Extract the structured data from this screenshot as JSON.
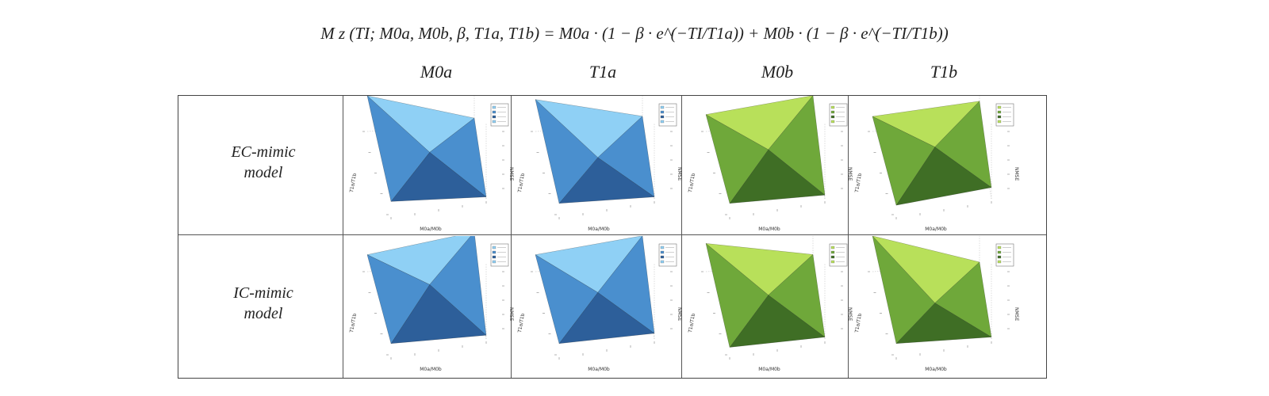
{
  "equation": "M z (TI; M0a, M0b, β, T1a, T1b) = M0a · (1 − β · e^(−TI/T1a)) + M0b · (1 − β · e^(−TI/T1b))",
  "columns": [
    "M0a",
    "T1a",
    "M0b",
    "T1b"
  ],
  "rows": [
    {
      "label_line1": "EC-mimic",
      "label_line2": "model"
    },
    {
      "label_line1": "IC-mimic",
      "label_line2": "model"
    }
  ],
  "axis_labels": {
    "z": "NMSE",
    "x": "M0a/M0b",
    "y": "T1a/T1b"
  },
  "colors": {
    "blue_light": "#8fd0f5",
    "blue_mid": "#4a8fce",
    "blue_dark": "#2d5f9a",
    "green_light": "#b8e05a",
    "green_mid": "#6fa83a",
    "green_dark": "#3f6e25"
  }
}
